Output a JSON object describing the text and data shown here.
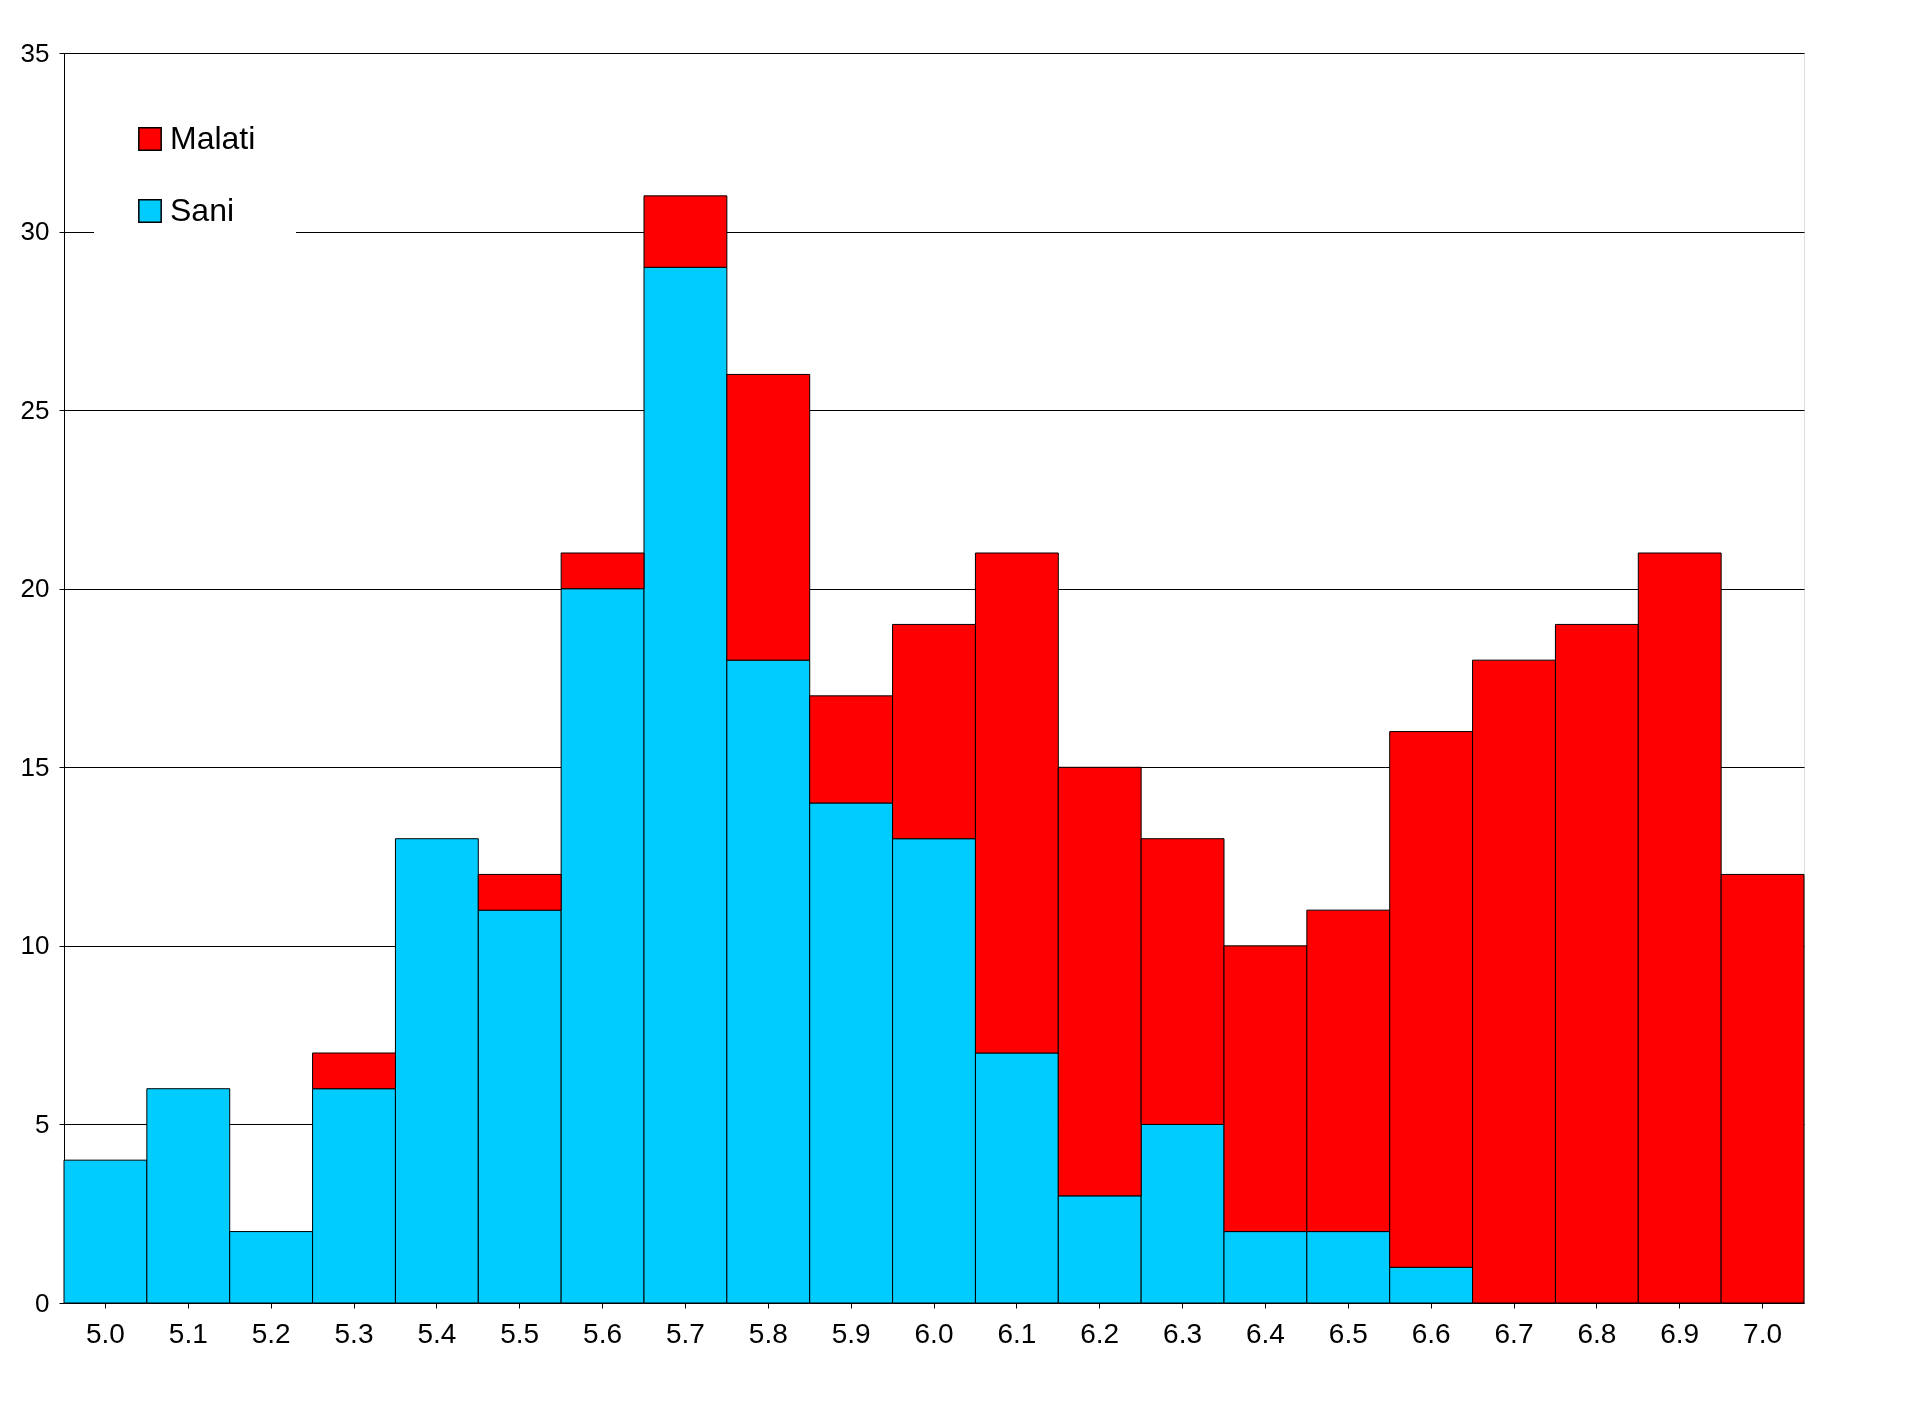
{
  "chart_data": {
    "type": "bar",
    "stacked": true,
    "categories": [
      "5.0",
      "5.1",
      "5.2",
      "5.3",
      "5.4",
      "5.5",
      "5.6",
      "5.7",
      "5.8",
      "5.9",
      "6.0",
      "6.1",
      "6.2",
      "6.3",
      "6.4",
      "6.5",
      "6.6",
      "6.7",
      "6.8",
      "6.9",
      "7.0"
    ],
    "series": [
      {
        "name": "Sani",
        "color": "#00ccff",
        "values": [
          4,
          6,
          2,
          6,
          13,
          11,
          20,
          29,
          18,
          14,
          13,
          7,
          3,
          5,
          2,
          2,
          1,
          null,
          null,
          null,
          null
        ]
      },
      {
        "name": "Malati",
        "color": "#ff0000",
        "values": [
          null,
          null,
          null,
          1,
          null,
          1,
          1,
          2,
          8,
          3,
          6,
          14,
          12,
          8,
          8,
          9,
          15,
          18,
          19,
          21,
          12
        ]
      }
    ],
    "ylim": [
      0,
      35
    ],
    "yticks": [
      0,
      5,
      10,
      15,
      20,
      25,
      30,
      35
    ],
    "grid": "y",
    "legend": "top left"
  }
}
